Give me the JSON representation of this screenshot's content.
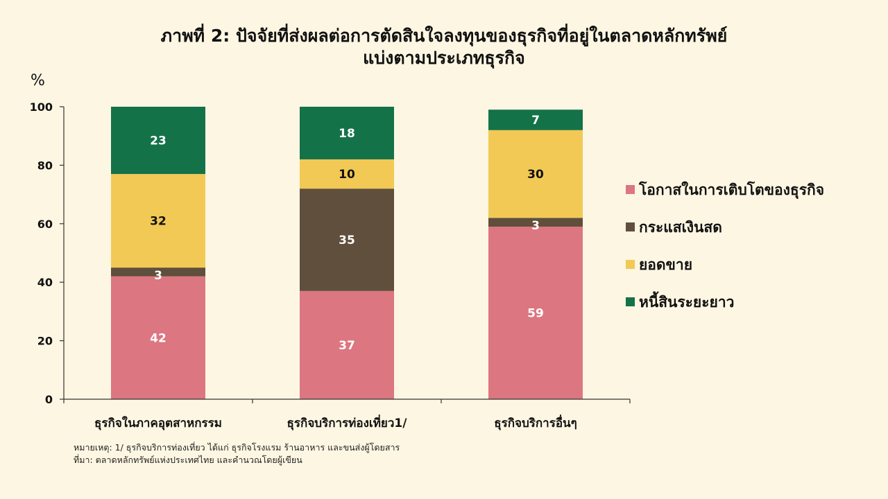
{
  "title": {
    "line1": "ภาพที่ 2: ปัจจัยที่ส่งผลต่อการตัดสินใจลงทุนของธุรกิจที่อยู่ในตลาดหลักทรัพย์",
    "line2": "แบ่งตามประเภทธุรกิจ"
  },
  "unit_label": "%",
  "notes": {
    "note": "หมายเหตุ: 1/ ธุรกิจบริการท่องเที่ยว ได้แก่ ธุรกิจโรงแรม ร้านอาหาร และขนส่งผู้โดยสาร",
    "source": "ที่มา: ตลาดหลักทรัพย์แห่งประเทศไทย และคำนวณโดยผู้เขียน"
  },
  "colors": {
    "growth": "#dc7680",
    "cashflow": "#5f4f3c",
    "sales": "#f2c955",
    "longdebt": "#147249",
    "axis": "#333333",
    "label_light": "#ffffff",
    "label_dark": "#111111"
  },
  "chart_data": {
    "type": "bar",
    "stacked": true,
    "categories": [
      "ธุรกิจในภาคอุตสาหกรรม",
      "ธุรกิจบริการท่องเที่ยว1/",
      "ธุรกิจบริการอื่นๆ"
    ],
    "series": [
      {
        "name": "โอกาสในการเติบโตของธุรกิจ",
        "color_key": "growth",
        "values": [
          42,
          37,
          59
        ],
        "label_color": "light"
      },
      {
        "name": "กระแสเงินสด",
        "color_key": "cashflow",
        "values": [
          3,
          35,
          3
        ],
        "label_color": "light"
      },
      {
        "name": "ยอดขาย",
        "color_key": "sales",
        "values": [
          32,
          10,
          30
        ],
        "label_color": "dark"
      },
      {
        "name": "หนี้สินระยะยาว",
        "color_key": "longdebt",
        "values": [
          23,
          18,
          7
        ],
        "label_color": "light"
      }
    ],
    "ylim": [
      0,
      100
    ],
    "yticks": [
      0,
      20,
      40,
      60,
      80,
      100
    ],
    "ylabel": "%",
    "legend_position": "right",
    "grid": false
  }
}
